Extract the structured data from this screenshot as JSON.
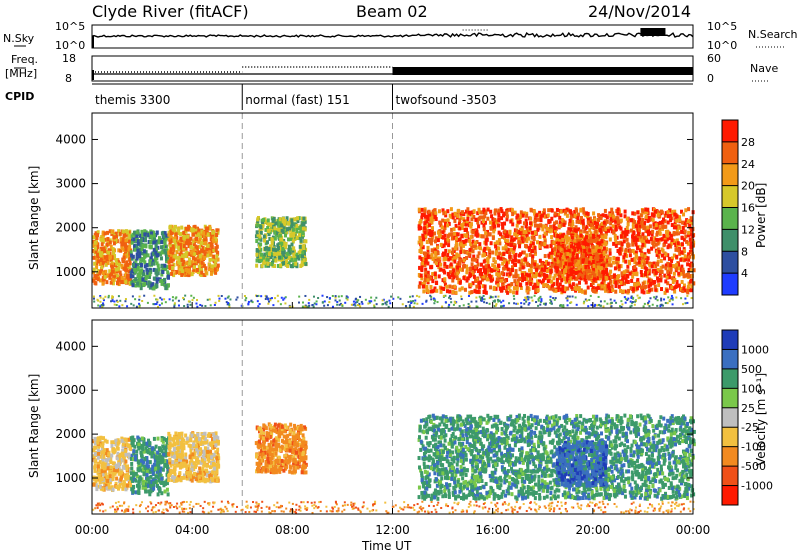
{
  "header": {
    "station": "Clyde River (fitACF)",
    "beam": "Beam 02",
    "date": "24/Nov/2014"
  },
  "left_labels": {
    "nsky": "N.Sky",
    "freq": "Freq.",
    "mhz": "[MHz]",
    "cpid": "CPID"
  },
  "right_labels": {
    "nsearch": "N.Search",
    "nave": "Nave"
  },
  "axis_labels": {
    "noise_top": "10^5",
    "noise_bot": "10^0",
    "freq_top": "18",
    "freq_bot": "8",
    "nave_top": "60",
    "nave_bot": "0"
  },
  "cpid_segments": [
    {
      "label": "themis 3300",
      "start_h": 0,
      "end_h": 6
    },
    {
      "label": "normal (fast) 151",
      "start_h": 6,
      "end_h": 12
    },
    {
      "label": "twofsound -3503",
      "start_h": 12,
      "end_h": 24
    }
  ],
  "panels": {
    "power": {
      "ylabel": "Slant Range [km]",
      "cbar_label": "Power [dB]",
      "cbar_ticks": [
        "4",
        "8",
        "12",
        "16",
        "20",
        "24",
        "28"
      ],
      "cbar_colors": [
        "#1f3cff",
        "#2e4fa0",
        "#3f8f6a",
        "#5ab34c",
        "#d6c82a",
        "#f29a18",
        "#f06010",
        "#ff1a00"
      ]
    },
    "velocity": {
      "ylabel": "Slant Range [km]",
      "cbar_label": "Velocity [m s⁻¹]",
      "cbar_ticks": [
        "1000",
        "500",
        "100",
        "25",
        "-25",
        "-100",
        "-500",
        "-1000"
      ],
      "cbar_colors": [
        "#1f3cb8",
        "#3a6fc0",
        "#3c9a6a",
        "#7ac84a",
        "#bfbfbf",
        "#f2c040",
        "#f28a20",
        "#f05018",
        "#ff1a00"
      ]
    }
  },
  "x_axis": {
    "label": "Time UT",
    "ticks": [
      "00:00",
      "04:00",
      "08:00",
      "12:00",
      "16:00",
      "20:00",
      "00:00"
    ]
  },
  "y_ticks": [
    "1000",
    "2000",
    "3000",
    "4000"
  ],
  "chart_data": {
    "type": "heatmap",
    "title": "Clyde River (fitACF) Beam 02 24/Nov/2014",
    "xlabel": "Time UT",
    "ylabel": "Slant Range [km]",
    "xlim_hours": [
      0,
      24
    ],
    "ylim_km": [
      180,
      4600
    ],
    "power_colorbar_db": [
      4,
      8,
      12,
      16,
      20,
      24,
      28
    ],
    "velocity_colorbar_ms": [
      1000,
      500,
      100,
      25,
      -25,
      -100,
      -500,
      -1000
    ],
    "cpid_change_times_h": [
      6,
      12
    ],
    "scatter_regions": [
      {
        "start_h": 0.0,
        "end_h": 1.5,
        "range_km": [
          700,
          1900
        ],
        "power_db": 24,
        "velocity_ms": -100
      },
      {
        "start_h": 1.5,
        "end_h": 3.0,
        "range_km": [
          600,
          1900
        ],
        "power_db": 14,
        "velocity_ms": 100
      },
      {
        "start_h": 3.0,
        "end_h": 5.0,
        "range_km": [
          900,
          2000
        ],
        "power_db": 24,
        "velocity_ms": -100
      },
      {
        "start_h": 6.5,
        "end_h": 8.5,
        "range_km": [
          1100,
          2200
        ],
        "power_db": 18,
        "velocity_ms": -300
      },
      {
        "start_h": 13.0,
        "end_h": 24.0,
        "range_km": [
          500,
          2400
        ],
        "power_db": 30,
        "velocity_ms": 100
      },
      {
        "start_h": 18.5,
        "end_h": 20.5,
        "range_km": [
          800,
          1800
        ],
        "power_db": 30,
        "velocity_ms": 800
      }
    ]
  }
}
